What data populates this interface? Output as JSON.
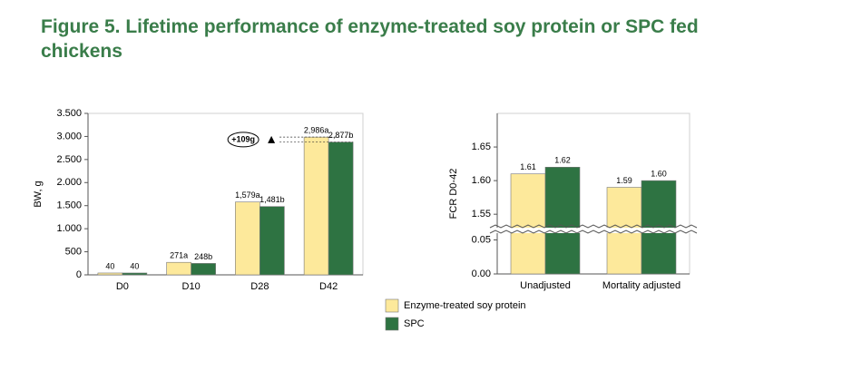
{
  "title": "Figure 5. Lifetime performance of enzyme-treated soy protein or SPC fed chickens",
  "chart_data": [
    {
      "type": "bar",
      "y_label": "BW, g",
      "categories": [
        "D0",
        "D10",
        "D28",
        "D42"
      ],
      "series": [
        {
          "name": "Enzyme-treated soy protein",
          "color": "#fde99b",
          "values": [
            40,
            271,
            1579,
            2986
          ],
          "value_labels": [
            "40",
            "271a",
            "1,579a",
            "2,986a"
          ]
        },
        {
          "name": "SPC",
          "color": "#2e7342",
          "values": [
            40,
            248,
            1481,
            2877
          ],
          "value_labels": [
            "40",
            "248b",
            "1,481b",
            "2,877b"
          ]
        }
      ],
      "ylim": [
        0,
        3500
      ],
      "yticks": [
        0,
        500,
        {
          "value": 1000,
          "label": "1.000"
        },
        {
          "value": 1500,
          "label": "1.500"
        },
        {
          "value": 2000,
          "label": "2.000"
        },
        {
          "value": 2500,
          "label": "2.500"
        },
        {
          "value": 3000,
          "label": "3.000"
        },
        {
          "value": 3500,
          "label": "3.500"
        }
      ],
      "annotation": "+109g"
    },
    {
      "type": "bar",
      "y_label": "FCR D0-42",
      "categories": [
        "Unadjusted",
        "Mortality adjusted"
      ],
      "series": [
        {
          "color": "#fde99b",
          "values": [
            1.61,
            1.59
          ],
          "value_labels": [
            "1.61",
            "1.59"
          ]
        },
        {
          "color": "#2e7342",
          "values": [
            1.62,
            1.6
          ],
          "value_labels": [
            "1.62",
            "1.60"
          ]
        }
      ],
      "ylim": [
        0,
        1.7
      ],
      "axis_break": [
        0.06,
        1.53
      ],
      "yticks": [
        {
          "value": 0,
          "label": "0.00"
        },
        {
          "value": 0.05,
          "label": "0.05"
        },
        {
          "value": 1.55,
          "label": "1.55"
        },
        {
          "value": 1.6,
          "label": "1.60"
        },
        {
          "value": 1.65,
          "label": "1.65"
        }
      ]
    }
  ]
}
